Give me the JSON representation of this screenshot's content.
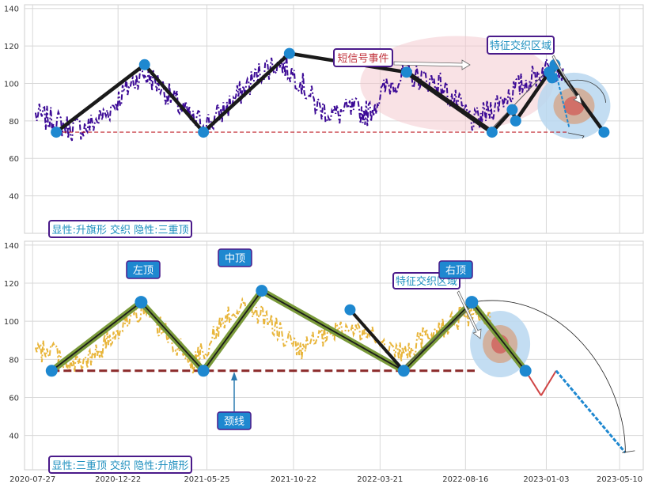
{
  "x_ticks": [
    "2020-07-27",
    "2020-12-22",
    "2021-05-25",
    "2021-10-22",
    "2022-03-21",
    "2022-08-16",
    "2023-01-03",
    "2023-05-10"
  ],
  "colors": {
    "top_price": "#3c0a96",
    "bottom_price": "#e8b53a",
    "pattern_line": "#1a1a1a",
    "pattern_green": "#7a9a3a",
    "node": "#1e88d0",
    "red_dash": "#c0202a",
    "neckline": "#8b2a2a",
    "label_text": "#1e8fbf",
    "label_border": "#4a1a8a",
    "label_fill": "#1e88d0",
    "event_text": "#c0303a"
  },
  "chart_data": [
    {
      "type": "line",
      "panel": "top",
      "ylim": [
        20,
        142
      ],
      "yticks": [
        40,
        60,
        80,
        100,
        120,
        140
      ],
      "ytick_labels": [
        "40",
        "60",
        "80",
        "100",
        "120",
        "140"
      ],
      "xlim": [
        "2020-07-13",
        "2023-06-20"
      ],
      "series": [
        {
          "style": "dash-dot price",
          "x": [
            "2020-08-01",
            "2020-09-01",
            "2020-10-01",
            "2020-11-01",
            "2020-12-01",
            "2021-01-01",
            "2021-02-01",
            "2021-03-01",
            "2021-04-01",
            "2021-05-01",
            "2021-06-01",
            "2021-07-01",
            "2021-08-01",
            "2021-09-01",
            "2021-10-01",
            "2021-11-01",
            "2021-12-01",
            "2022-01-01",
            "2022-02-01",
            "2022-03-01",
            "2022-04-01",
            "2022-05-01",
            "2022-06-01",
            "2022-07-01",
            "2022-08-01",
            "2022-09-01",
            "2022-10-01",
            "2022-11-01",
            "2022-12-01",
            "2023-01-01",
            "2023-02-01"
          ],
          "values": [
            83,
            80,
            76,
            77,
            84,
            95,
            106,
            100,
            90,
            80,
            79,
            88,
            98,
            108,
            111,
            102,
            88,
            83,
            86,
            84,
            98,
            104,
            103,
            100,
            89,
            79,
            87,
            95,
            101,
            108,
            108
          ]
        },
        {
          "style": "pattern zigzag",
          "x": [
            "2020-09-06",
            "2021-02-06",
            "2021-05-19",
            "2021-10-15",
            "2022-05-06",
            "2022-10-01",
            "2022-10-01",
            "2022-11-05",
            "2022-11-11",
            "2023-01-08",
            "2023-01-13",
            "2023-01-18",
            "2023-04-13"
          ],
          "values": [
            74,
            110,
            74,
            116,
            106,
            74,
            74,
            86,
            80,
            106,
            103,
            110,
            74
          ]
        }
      ],
      "red_dashed_line": {
        "y": 74,
        "x_from": "2020-09-06",
        "x_to": "2023-02-10"
      },
      "annotations": [
        {
          "text": "短信号事件"
        },
        {
          "text": "特征交织区域"
        },
        {
          "text": "显性:升旗形 交织 隐性:三重顶"
        }
      ]
    },
    {
      "type": "line",
      "panel": "bottom",
      "ylim": [
        22,
        142
      ],
      "yticks": [
        40,
        60,
        80,
        100,
        120,
        140
      ],
      "ytick_labels": [
        "40",
        "60",
        "80",
        "100",
        "120",
        "140"
      ],
      "xlim": [
        "2020-07-13",
        "2023-06-20"
      ],
      "series": [
        {
          "style": "dash-dot price",
          "x": [
            "2020-08-01",
            "2020-09-01",
            "2020-10-01",
            "2020-11-01",
            "2020-12-01",
            "2021-01-01",
            "2021-02-01",
            "2021-03-01",
            "2021-04-01",
            "2021-05-01",
            "2021-06-01",
            "2021-07-01",
            "2021-08-01",
            "2021-09-01",
            "2021-10-01",
            "2021-11-01",
            "2021-12-01",
            "2022-01-01",
            "2022-02-01",
            "2022-03-01",
            "2022-04-01",
            "2022-05-01",
            "2022-06-01",
            "2022-07-01",
            "2022-08-01",
            "2022-09-01",
            "2022-10-01"
          ],
          "values": [
            83,
            86,
            76,
            79,
            88,
            100,
            106,
            98,
            88,
            78,
            90,
            104,
            108,
            102,
            94,
            84,
            90,
            94,
            96,
            93,
            88,
            82,
            90,
            96,
            101,
            104,
            98
          ]
        },
        {
          "style": "pattern zigzag",
          "x": [
            "2020-08-29",
            "2021-01-31",
            "2021-05-19",
            "2021-08-28",
            "2022-05-01",
            "2022-08-27",
            "2022-11-28"
          ],
          "values": [
            74,
            110,
            74,
            116,
            74,
            110,
            74
          ]
        },
        {
          "style": "projection",
          "x": [
            "2022-11-28",
            "2022-12-25",
            "2023-01-20",
            "2023-05-20"
          ],
          "values": [
            74,
            61,
            74,
            31
          ]
        }
      ],
      "neckline": {
        "y": 74,
        "x_from": "2020-08-29",
        "x_to": "2022-09-01"
      },
      "annotations": [
        {
          "text": "左顶"
        },
        {
          "text": "中顶"
        },
        {
          "text": "右顶"
        },
        {
          "text": "特征交织区域"
        },
        {
          "text": "颈线"
        },
        {
          "text": "显性:三重顶 交织 隐性:升旗形"
        }
      ]
    }
  ]
}
